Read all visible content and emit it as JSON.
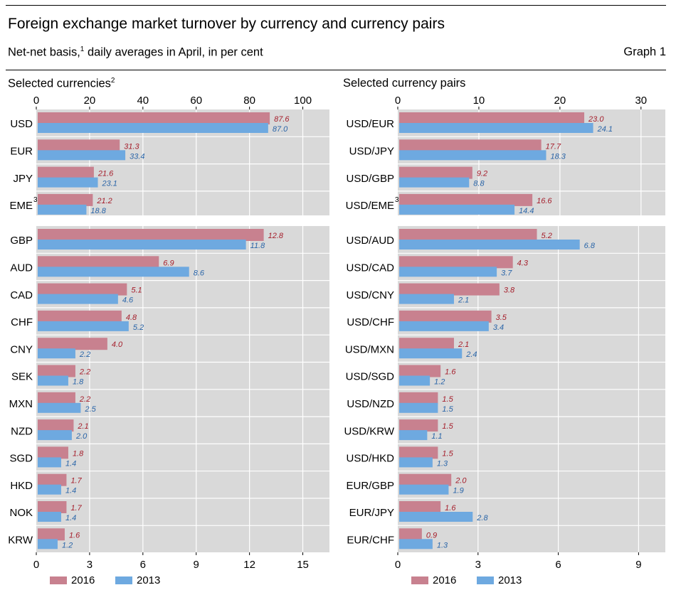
{
  "header": {
    "title": "Foreign exchange market turnover by currency and currency pairs",
    "subtitle": "Net-net basis,",
    "subtitle_sup": "1",
    "subtitle_rest": " daily averages in April, in per cent",
    "graph_label": "Graph 1"
  },
  "colors": {
    "s2016": "#c8818f",
    "s2013": "#6ea9e0",
    "panel_bg": "#d9d9d9",
    "label2016": "#a51e2b",
    "label2013": "#2a65a8"
  },
  "chart_data": [
    {
      "type": "bar",
      "orientation": "horizontal",
      "title": "Selected currencies",
      "title_sup": "2",
      "series": [
        {
          "name": "2016"
        },
        {
          "name": "2013"
        }
      ],
      "groups": [
        {
          "xlim": [
            0,
            110
          ],
          "axis_ticks": [
            0,
            20,
            40,
            60,
            80,
            100
          ],
          "axis_position": "top",
          "categories": [
            {
              "label": "USD",
              "v2016": 87.6,
              "v2013": 87.0
            },
            {
              "label": "EUR",
              "v2016": 31.3,
              "v2013": 33.4
            },
            {
              "label": "JPY",
              "v2016": 21.6,
              "v2013": 23.1
            },
            {
              "label": "EME",
              "sup": "3",
              "v2016": 21.2,
              "v2013": 18.8
            }
          ]
        },
        {
          "xlim": [
            0,
            16.5
          ],
          "axis_ticks": [
            0,
            3,
            6,
            9,
            12,
            15
          ],
          "axis_position": "bottom",
          "categories": [
            {
              "label": "GBP",
              "v2016": 12.8,
              "v2013": 11.8
            },
            {
              "label": "AUD",
              "v2016": 6.9,
              "v2013": 8.6
            },
            {
              "label": "CAD",
              "v2016": 5.1,
              "v2013": 4.6
            },
            {
              "label": "CHF",
              "v2016": 4.8,
              "v2013": 5.2
            },
            {
              "label": "CNY",
              "v2016": 4.0,
              "v2013": 2.2
            },
            {
              "label": "SEK",
              "v2016": 2.2,
              "v2013": 1.8
            },
            {
              "label": "MXN",
              "v2016": 2.2,
              "v2013": 2.5
            },
            {
              "label": "NZD",
              "v2016": 2.1,
              "v2013": 2.0
            },
            {
              "label": "SGD",
              "v2016": 1.8,
              "v2013": 1.4
            },
            {
              "label": "HKD",
              "v2016": 1.7,
              "v2013": 1.4
            },
            {
              "label": "NOK",
              "v2016": 1.7,
              "v2013": 1.4
            },
            {
              "label": "KRW",
              "v2016": 1.6,
              "v2013": 1.2
            }
          ]
        }
      ],
      "legend": [
        "2016",
        "2013"
      ],
      "legend_position": "bottom-left"
    },
    {
      "type": "bar",
      "orientation": "horizontal",
      "title": "Selected currency pairs",
      "series": [
        {
          "name": "2016"
        },
        {
          "name": "2013"
        }
      ],
      "groups": [
        {
          "xlim": [
            0,
            33
          ],
          "axis_ticks": [
            0,
            10,
            20,
            30
          ],
          "axis_position": "top",
          "categories": [
            {
              "label": "USD/EUR",
              "v2016": 23.0,
              "v2013": 24.1
            },
            {
              "label": "USD/JPY",
              "v2016": 17.7,
              "v2013": 18.3
            },
            {
              "label": "USD/GBP",
              "v2016": 9.2,
              "v2013": 8.8
            },
            {
              "label": "USD/EME",
              "sup": "3",
              "v2016": 16.6,
              "v2013": 14.4
            }
          ]
        },
        {
          "xlim": [
            0,
            10
          ],
          "axis_ticks": [
            0,
            3,
            6,
            9
          ],
          "axis_position": "bottom",
          "categories": [
            {
              "label": "USD/AUD",
              "v2016": 5.2,
              "v2013": 6.8
            },
            {
              "label": "USD/CAD",
              "v2016": 4.3,
              "v2013": 3.7
            },
            {
              "label": "USD/CNY",
              "v2016": 3.8,
              "v2013": 2.1
            },
            {
              "label": "USD/CHF",
              "v2016": 3.5,
              "v2013": 3.4
            },
            {
              "label": "USD/MXN",
              "v2016": 2.1,
              "v2013": 2.4
            },
            {
              "label": "USD/SGD",
              "v2016": 1.6,
              "v2013": 1.2
            },
            {
              "label": "USD/NZD",
              "v2016": 1.5,
              "v2013": 1.5
            },
            {
              "label": "USD/KRW",
              "v2016": 1.5,
              "v2013": 1.1
            },
            {
              "label": "USD/HKD",
              "v2016": 1.5,
              "v2013": 1.3
            },
            {
              "label": "EUR/GBP",
              "v2016": 2.0,
              "v2013": 1.9
            },
            {
              "label": "EUR/JPY",
              "v2016": 1.6,
              "v2013": 2.8
            },
            {
              "label": "EUR/CHF",
              "v2016": 0.9,
              "v2013": 1.3
            }
          ]
        }
      ],
      "legend": [
        "2016",
        "2013"
      ],
      "legend_position": "bottom-left"
    }
  ]
}
